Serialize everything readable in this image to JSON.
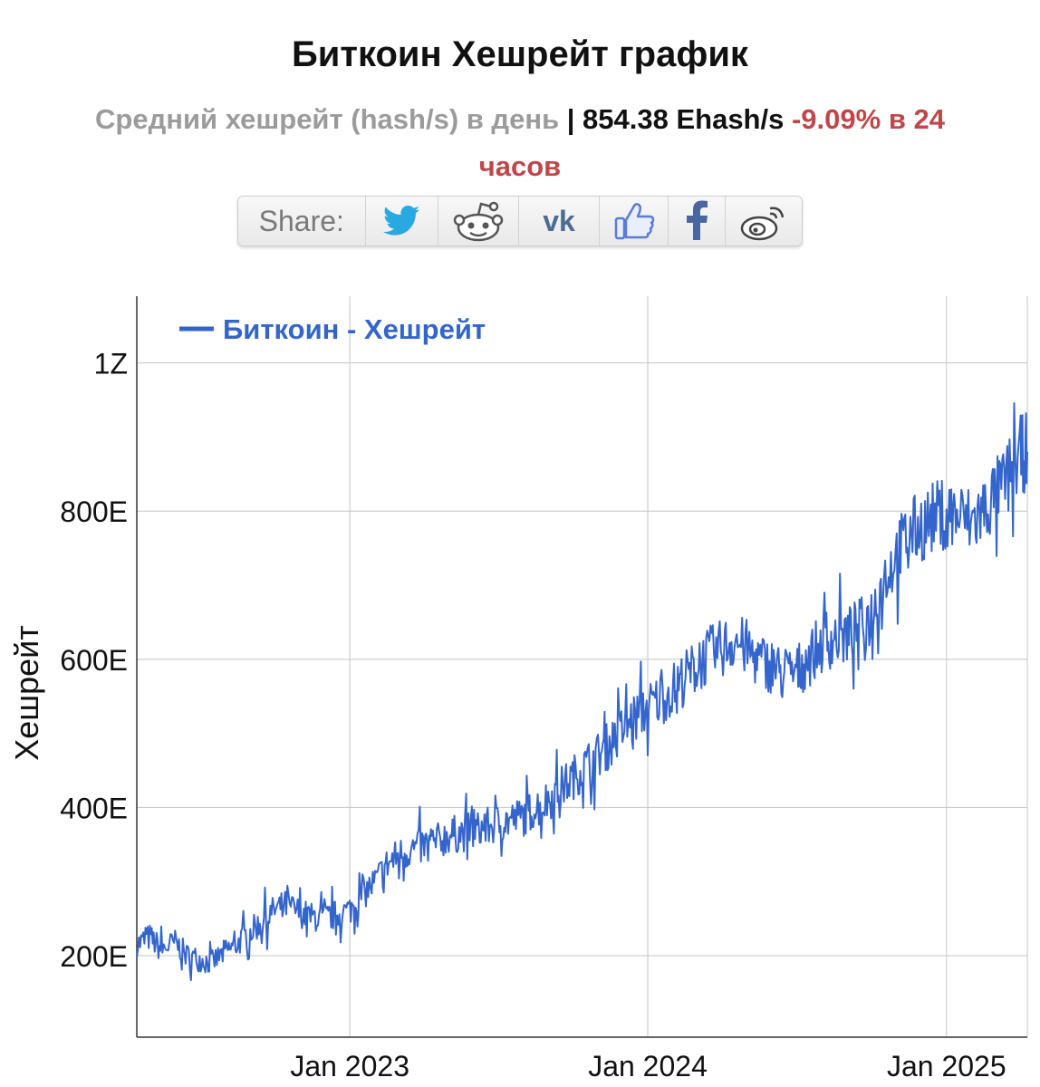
{
  "header": {
    "title": "Биткоин Хешрейт график",
    "subtitle_label": "Средний хешрейт (hash/s) в день",
    "separator": " | ",
    "current_value": "854.38 Ehash/s",
    "change": "-9.09% в 24",
    "change_cont": "часов"
  },
  "share": {
    "label": "Share:",
    "buttons": [
      {
        "name": "twitter",
        "icon": "twitter-bird-icon",
        "color": "#29a9e1"
      },
      {
        "name": "reddit",
        "icon": "reddit-alien-icon",
        "color": "#555555"
      },
      {
        "name": "vk",
        "icon": "vk-icon",
        "color": "#4c6c91"
      },
      {
        "name": "like",
        "icon": "thumbs-up-icon",
        "color": "#5b7bd5"
      },
      {
        "name": "facebook",
        "icon": "facebook-f-icon",
        "color": "#4a669f"
      },
      {
        "name": "weibo",
        "icon": "weibo-icon",
        "color": "#444444"
      }
    ]
  },
  "chart_data": {
    "type": "line",
    "title": "",
    "xlabel": "",
    "ylabel": "Хешрейт",
    "legend": {
      "label": "Биткоин - Хешрейт",
      "position": "top-left"
    },
    "series_color": "#3465cc",
    "grid": true,
    "x_ticks": [
      {
        "date": "2023-01-01",
        "label": "Jan 2023"
      },
      {
        "date": "2024-01-01",
        "label": "Jan 2024"
      },
      {
        "date": "2025-01-01",
        "label": "Jan 2025"
      }
    ],
    "x_range": [
      "2022-04-15",
      "2025-04-10"
    ],
    "y_ticks": [
      {
        "value": 200,
        "label": "200E"
      },
      {
        "value": 400,
        "label": "400E"
      },
      {
        "value": 600,
        "label": "600E"
      },
      {
        "value": 800,
        "label": "800E"
      },
      {
        "value": 1000,
        "label": "1Z"
      }
    ],
    "ylim": [
      90,
      1090
    ],
    "y_unit": "Ehash/s",
    "series": [
      {
        "values": [
          [
            "2022-04-15",
            215
          ],
          [
            "2022-05-01",
            225
          ],
          [
            "2022-05-15",
            208
          ],
          [
            "2022-06-01",
            218
          ],
          [
            "2022-06-15",
            200
          ],
          [
            "2022-07-01",
            195
          ],
          [
            "2022-07-15",
            190
          ],
          [
            "2022-08-01",
            205
          ],
          [
            "2022-08-15",
            215
          ],
          [
            "2022-09-01",
            232
          ],
          [
            "2022-09-15",
            245
          ],
          [
            "2022-10-01",
            262
          ],
          [
            "2022-10-15",
            268
          ],
          [
            "2022-11-01",
            258
          ],
          [
            "2022-11-15",
            252
          ],
          [
            "2022-12-01",
            250
          ],
          [
            "2022-12-15",
            255
          ],
          [
            "2023-01-01",
            262
          ],
          [
            "2023-01-15",
            280
          ],
          [
            "2023-02-01",
            300
          ],
          [
            "2023-02-15",
            322
          ],
          [
            "2023-03-01",
            335
          ],
          [
            "2023-03-15",
            342
          ],
          [
            "2023-04-01",
            348
          ],
          [
            "2023-04-15",
            352
          ],
          [
            "2023-05-01",
            362
          ],
          [
            "2023-05-15",
            365
          ],
          [
            "2023-06-01",
            368
          ],
          [
            "2023-06-15",
            372
          ],
          [
            "2023-07-01",
            378
          ],
          [
            "2023-07-15",
            382
          ],
          [
            "2023-08-01",
            388
          ],
          [
            "2023-08-15",
            398
          ],
          [
            "2023-09-01",
            410
          ],
          [
            "2023-09-15",
            425
          ],
          [
            "2023-10-01",
            440
          ],
          [
            "2023-10-15",
            455
          ],
          [
            "2023-11-01",
            470
          ],
          [
            "2023-11-15",
            485
          ],
          [
            "2023-12-01",
            505
          ],
          [
            "2023-12-15",
            520
          ],
          [
            "2024-01-01",
            535
          ],
          [
            "2024-01-15",
            545
          ],
          [
            "2024-02-01",
            560
          ],
          [
            "2024-02-15",
            575
          ],
          [
            "2024-03-01",
            590
          ],
          [
            "2024-03-15",
            605
          ],
          [
            "2024-04-01",
            615
          ],
          [
            "2024-04-15",
            625
          ],
          [
            "2024-05-01",
            615
          ],
          [
            "2024-05-15",
            598
          ],
          [
            "2024-06-01",
            592
          ],
          [
            "2024-06-15",
            578
          ],
          [
            "2024-07-01",
            582
          ],
          [
            "2024-07-15",
            600
          ],
          [
            "2024-08-01",
            620
          ],
          [
            "2024-08-15",
            628
          ],
          [
            "2024-09-01",
            632
          ],
          [
            "2024-09-15",
            640
          ],
          [
            "2024-10-01",
            660
          ],
          [
            "2024-10-15",
            705
          ],
          [
            "2024-11-01",
            742
          ],
          [
            "2024-11-15",
            768
          ],
          [
            "2024-12-01",
            780
          ],
          [
            "2024-12-15",
            790
          ],
          [
            "2025-01-01",
            800
          ],
          [
            "2025-01-15",
            792
          ],
          [
            "2025-02-01",
            785
          ],
          [
            "2025-02-15",
            800
          ],
          [
            "2025-03-01",
            820
          ],
          [
            "2025-03-15",
            840
          ],
          [
            "2025-04-01",
            875
          ],
          [
            "2025-04-10",
            880
          ]
        ]
      }
    ]
  }
}
